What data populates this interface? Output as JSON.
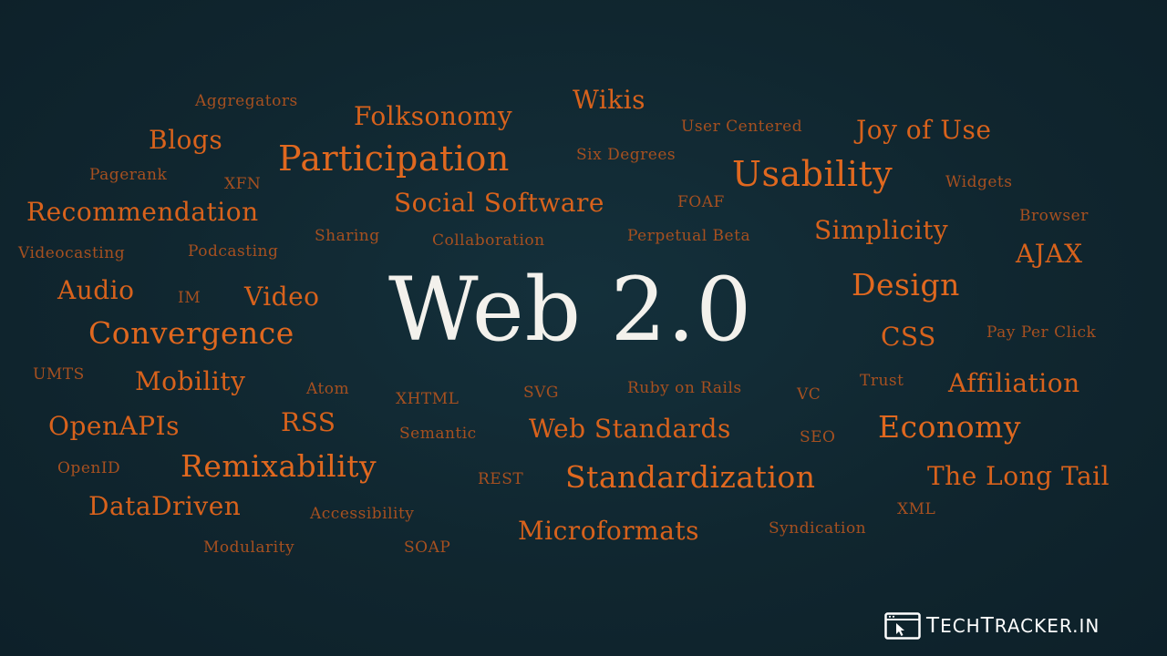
{
  "headline": "Web 2.0",
  "words": [
    {
      "text": "Aggregators",
      "size": "xs"
    },
    {
      "text": "Folksonomy",
      "size": "m"
    },
    {
      "text": "Wikis",
      "size": "m"
    },
    {
      "text": "User Centered",
      "size": "xs"
    },
    {
      "text": "Joy of Use",
      "size": "m"
    },
    {
      "text": "Blogs",
      "size": "m"
    },
    {
      "text": "Participation",
      "size": "xl"
    },
    {
      "text": "Six Degrees",
      "size": "xs"
    },
    {
      "text": "Usability",
      "size": "xl"
    },
    {
      "text": "Widgets",
      "size": "xs"
    },
    {
      "text": "Pagerank",
      "size": "xs"
    },
    {
      "text": "XFN",
      "size": "xs"
    },
    {
      "text": "Recommendation",
      "size": "m"
    },
    {
      "text": "Social Software",
      "size": "m"
    },
    {
      "text": "FOAF",
      "size": "xs"
    },
    {
      "text": "Browser",
      "size": "xs"
    },
    {
      "text": "Simplicity",
      "size": "m"
    },
    {
      "text": "Videocasting",
      "size": "xs"
    },
    {
      "text": "Podcasting",
      "size": "xs"
    },
    {
      "text": "Sharing",
      "size": "xs"
    },
    {
      "text": "Collaboration",
      "size": "xs"
    },
    {
      "text": "Perpetual Beta",
      "size": "xs"
    },
    {
      "text": "AJAX",
      "size": "m"
    },
    {
      "text": "Audio",
      "size": "m"
    },
    {
      "text": "IM",
      "size": "xs"
    },
    {
      "text": "Video",
      "size": "m"
    },
    {
      "text": "Design",
      "size": "l"
    },
    {
      "text": "Convergence",
      "size": "l"
    },
    {
      "text": "CSS",
      "size": "m"
    },
    {
      "text": "Pay Per Click",
      "size": "xs"
    },
    {
      "text": "UMTS",
      "size": "xs"
    },
    {
      "text": "Mobility",
      "size": "m"
    },
    {
      "text": "Atom",
      "size": "xs"
    },
    {
      "text": "XHTML",
      "size": "xs"
    },
    {
      "text": "SVG",
      "size": "xs"
    },
    {
      "text": "Ruby on Rails",
      "size": "xs"
    },
    {
      "text": "VC",
      "size": "xs"
    },
    {
      "text": "Trust",
      "size": "xs"
    },
    {
      "text": "Affiliation",
      "size": "m"
    },
    {
      "text": "OpenAPIs",
      "size": "m"
    },
    {
      "text": "RSS",
      "size": "m"
    },
    {
      "text": "Semantic",
      "size": "xs"
    },
    {
      "text": "Web Standards",
      "size": "m"
    },
    {
      "text": "SEO",
      "size": "xs"
    },
    {
      "text": "Economy",
      "size": "l"
    },
    {
      "text": "OpenID",
      "size": "xs"
    },
    {
      "text": "Remixability",
      "size": "l"
    },
    {
      "text": "REST",
      "size": "xs"
    },
    {
      "text": "Standardization",
      "size": "l"
    },
    {
      "text": "The Long Tail",
      "size": "m"
    },
    {
      "text": "DataDriven",
      "size": "m"
    },
    {
      "text": "Accessibility",
      "size": "xs"
    },
    {
      "text": "XML",
      "size": "xs"
    },
    {
      "text": "Microformats",
      "size": "m"
    },
    {
      "text": "Syndication",
      "size": "xs"
    },
    {
      "text": "Modularity",
      "size": "xs"
    },
    {
      "text": "SOAP",
      "size": "xs"
    }
  ],
  "logo": {
    "icon": "cursor-window-icon",
    "text_first": "T",
    "text_rest_1": "ECH",
    "text_second": "T",
    "text_rest_2": "RACKER.IN"
  },
  "colors": {
    "background": "#10262f",
    "accent": "#e0681f",
    "headline": "#f3f1ec",
    "logo_text": "#ffffff"
  }
}
